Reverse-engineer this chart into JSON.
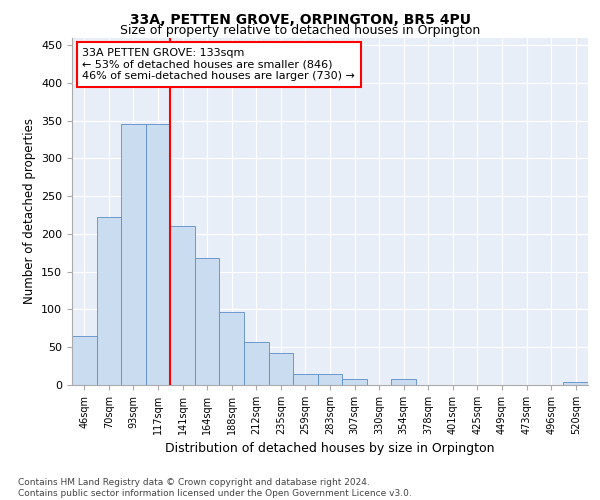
{
  "title": "33A, PETTEN GROVE, ORPINGTON, BR5 4PU",
  "subtitle": "Size of property relative to detached houses in Orpington",
  "xlabel": "Distribution of detached houses by size in Orpington",
  "ylabel": "Number of detached properties",
  "bar_color": "#c9dcf0",
  "bar_edge_color": "#5b8cc8",
  "categories": [
    "46sqm",
    "70sqm",
    "93sqm",
    "117sqm",
    "141sqm",
    "164sqm",
    "188sqm",
    "212sqm",
    "235sqm",
    "259sqm",
    "283sqm",
    "307sqm",
    "330sqm",
    "354sqm",
    "378sqm",
    "401sqm",
    "425sqm",
    "449sqm",
    "473sqm",
    "496sqm",
    "520sqm"
  ],
  "values": [
    65,
    222,
    345,
    345,
    210,
    168,
    97,
    57,
    43,
    15,
    15,
    8,
    0,
    8,
    0,
    0,
    0,
    0,
    0,
    0,
    4
  ],
  "vline_index": 4,
  "annotation_line1": "33A PETTEN GROVE: 133sqm",
  "annotation_line2": "← 53% of detached houses are smaller (846)",
  "annotation_line3": "46% of semi-detached houses are larger (730) →",
  "ylim": [
    0,
    460
  ],
  "yticks": [
    0,
    50,
    100,
    150,
    200,
    250,
    300,
    350,
    400,
    450
  ],
  "background_color": "#e8eef8",
  "footer_line1": "Contains HM Land Registry data © Crown copyright and database right 2024.",
  "footer_line2": "Contains public sector information licensed under the Open Government Licence v3.0."
}
